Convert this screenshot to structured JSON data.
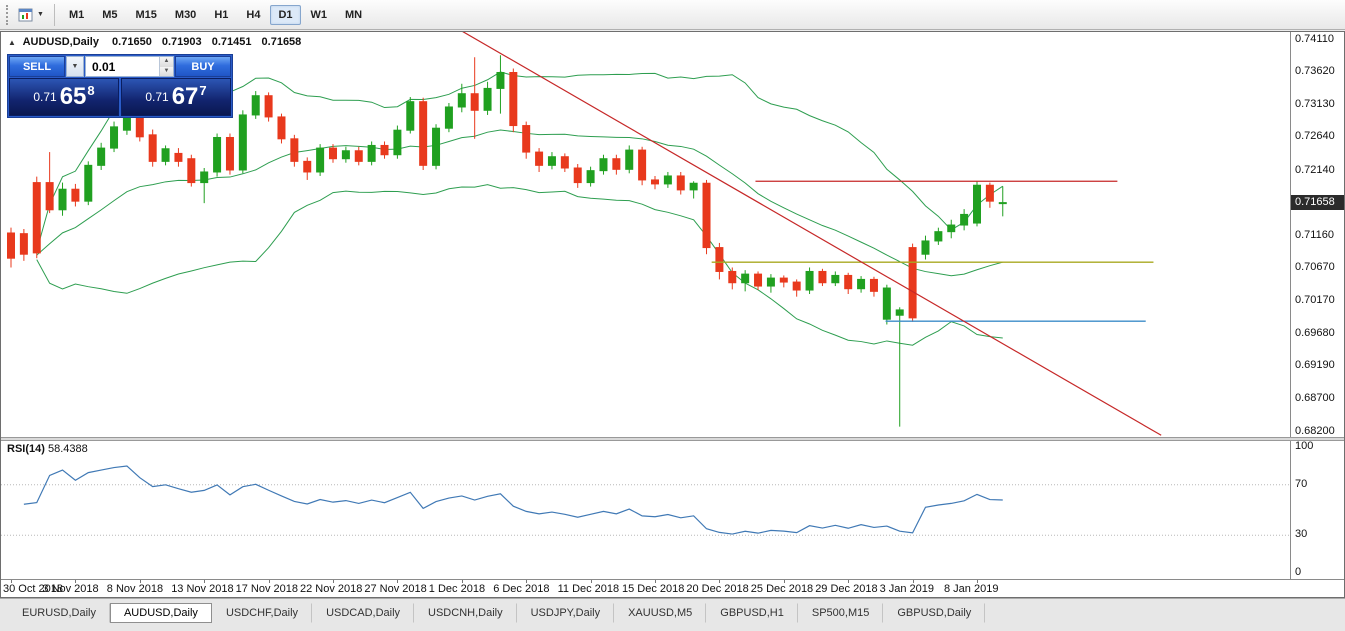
{
  "toolbar": {
    "periods": [
      "M1",
      "M5",
      "M15",
      "M30",
      "H1",
      "H4",
      "D1",
      "W1",
      "MN"
    ],
    "active_period": "D1"
  },
  "chart": {
    "title_symbol": "AUDUSD,Daily",
    "ohlc": {
      "open": "0.71650",
      "high": "0.71903",
      "low": "0.71451",
      "close": "0.71658"
    },
    "current_price": "0.71658",
    "trade_panel": {
      "sell_label": "SELL",
      "buy_label": "BUY",
      "volume": "0.01",
      "sell_price": {
        "prefix": "0.71",
        "big": "65",
        "sup": "8"
      },
      "buy_price": {
        "prefix": "0.71",
        "big": "67",
        "sup": "7"
      }
    }
  },
  "rsi": {
    "label": "RSI(14)",
    "value": "58.4388"
  },
  "tabs": {
    "active_index": 1,
    "items": [
      "EURUSD,Daily",
      "AUDUSD,Daily",
      "USDCHF,Daily",
      "USDCAD,Daily",
      "USDCNH,Daily",
      "USDJPY,Daily",
      "XAUUSD,M5",
      "GBPUSD,H1",
      "SP500,M15",
      "GBPUSD,Daily"
    ]
  },
  "chart_data": {
    "type": "candlestick",
    "title": "AUDUSD,Daily",
    "grid": "off",
    "view_price_range": [
      0.6812,
      0.7423
    ],
    "price_axis_labels": [
      "0.74110",
      "0.73620",
      "0.73130",
      "0.72640",
      "0.72140",
      "0.71650",
      "0.71160",
      "0.70670",
      "0.70170",
      "0.69680",
      "0.69190",
      "0.68700",
      "0.68200"
    ],
    "x_labels": [
      "30 Oct 2018",
      "3 Nov 2018",
      "8 Nov 2018",
      "13 Nov 2018",
      "17 Nov 2018",
      "22 Nov 2018",
      "27 Nov 2018",
      "1 Dec 2018",
      "6 Dec 2018",
      "11 Dec 2018",
      "15 Dec 2018",
      "20 Dec 2018",
      "25 Dec 2018",
      "29 Dec 2018",
      "3 Jan 2019",
      "8 Jan 2019"
    ],
    "candle_colors": {
      "up": "#20A020",
      "down": "#E8391D"
    },
    "candles_ohlc": [
      [
        0.712,
        0.7128,
        0.7068,
        0.7082
      ],
      [
        0.7119,
        0.7126,
        0.7078,
        0.7088
      ],
      [
        0.7196,
        0.7205,
        0.7082,
        0.709
      ],
      [
        0.7196,
        0.7242,
        0.715,
        0.7155
      ],
      [
        0.7155,
        0.7196,
        0.7146,
        0.7186
      ],
      [
        0.7186,
        0.7194,
        0.716,
        0.7168
      ],
      [
        0.7168,
        0.7228,
        0.7162,
        0.7222
      ],
      [
        0.7222,
        0.7256,
        0.7215,
        0.7248
      ],
      [
        0.7248,
        0.7288,
        0.7242,
        0.728
      ],
      [
        0.7275,
        0.7312,
        0.7268,
        0.7304
      ],
      [
        0.7297,
        0.7306,
        0.7258,
        0.7265
      ],
      [
        0.7268,
        0.7276,
        0.722,
        0.7228
      ],
      [
        0.7228,
        0.7252,
        0.7222,
        0.7247
      ],
      [
        0.724,
        0.7248,
        0.722,
        0.7228
      ],
      [
        0.7232,
        0.7238,
        0.719,
        0.7196
      ],
      [
        0.7196,
        0.7218,
        0.7165,
        0.7212
      ],
      [
        0.7212,
        0.727,
        0.7205,
        0.7264
      ],
      [
        0.7264,
        0.727,
        0.7208,
        0.7215
      ],
      [
        0.7215,
        0.7305,
        0.721,
        0.7298
      ],
      [
        0.7298,
        0.7334,
        0.7292,
        0.7327
      ],
      [
        0.7327,
        0.7332,
        0.7288,
        0.7295
      ],
      [
        0.7295,
        0.73,
        0.7255,
        0.7262
      ],
      [
        0.7262,
        0.7268,
        0.722,
        0.7228
      ],
      [
        0.7228,
        0.7234,
        0.72,
        0.7212
      ],
      [
        0.7212,
        0.7254,
        0.7206,
        0.7248
      ],
      [
        0.7248,
        0.7254,
        0.7226,
        0.7232
      ],
      [
        0.7232,
        0.725,
        0.7226,
        0.7244
      ],
      [
        0.7244,
        0.725,
        0.7222,
        0.7228
      ],
      [
        0.7228,
        0.7258,
        0.7222,
        0.7252
      ],
      [
        0.7252,
        0.7258,
        0.7232,
        0.7238
      ],
      [
        0.7238,
        0.7282,
        0.7232,
        0.7275
      ],
      [
        0.7275,
        0.7325,
        0.727,
        0.7318
      ],
      [
        0.7318,
        0.7324,
        0.7215,
        0.7222
      ],
      [
        0.7222,
        0.7284,
        0.7216,
        0.7278
      ],
      [
        0.7278,
        0.7316,
        0.7272,
        0.731
      ],
      [
        0.731,
        0.7345,
        0.7302,
        0.733
      ],
      [
        0.733,
        0.7385,
        0.7262,
        0.7305
      ],
      [
        0.7305,
        0.7348,
        0.7298,
        0.7338
      ],
      [
        0.7338,
        0.7388,
        0.73,
        0.7362
      ],
      [
        0.7362,
        0.7368,
        0.7272,
        0.7282
      ],
      [
        0.7282,
        0.7288,
        0.7232,
        0.7242
      ],
      [
        0.7242,
        0.7248,
        0.7212,
        0.7222
      ],
      [
        0.7222,
        0.7242,
        0.7216,
        0.7235
      ],
      [
        0.7235,
        0.724,
        0.7212,
        0.7218
      ],
      [
        0.7218,
        0.7224,
        0.7188,
        0.7196
      ],
      [
        0.7196,
        0.722,
        0.719,
        0.7214
      ],
      [
        0.7214,
        0.7238,
        0.7208,
        0.7232
      ],
      [
        0.7232,
        0.7238,
        0.7208,
        0.7216
      ],
      [
        0.7216,
        0.7252,
        0.721,
        0.7245
      ],
      [
        0.7245,
        0.725,
        0.7192,
        0.72
      ],
      [
        0.72,
        0.7206,
        0.7186,
        0.7194
      ],
      [
        0.7194,
        0.7212,
        0.7188,
        0.7206
      ],
      [
        0.7206,
        0.7212,
        0.7178,
        0.7185
      ],
      [
        0.7185,
        0.7198,
        0.7172,
        0.7195
      ],
      [
        0.7195,
        0.72,
        0.7088,
        0.7098
      ],
      [
        0.7098,
        0.7105,
        0.705,
        0.7062
      ],
      [
        0.7062,
        0.7068,
        0.7035,
        0.7045
      ],
      [
        0.7045,
        0.7064,
        0.7032,
        0.7058
      ],
      [
        0.7058,
        0.7062,
        0.7034,
        0.704
      ],
      [
        0.704,
        0.7058,
        0.703,
        0.7052
      ],
      [
        0.7052,
        0.7056,
        0.7038,
        0.7046
      ],
      [
        0.7046,
        0.705,
        0.7024,
        0.7034
      ],
      [
        0.7034,
        0.7068,
        0.7028,
        0.7062
      ],
      [
        0.7062,
        0.7066,
        0.704,
        0.7045
      ],
      [
        0.7045,
        0.7062,
        0.704,
        0.7056
      ],
      [
        0.7056,
        0.706,
        0.7028,
        0.7036
      ],
      [
        0.7036,
        0.7055,
        0.703,
        0.705
      ],
      [
        0.705,
        0.7054,
        0.7024,
        0.7032
      ],
      [
        0.699,
        0.7042,
        0.6982,
        0.7037
      ],
      [
        0.6996,
        0.7008,
        0.6828,
        0.7004
      ],
      [
        0.7098,
        0.7104,
        0.6986,
        0.6992
      ],
      [
        0.7088,
        0.7116,
        0.708,
        0.7108
      ],
      [
        0.7108,
        0.7128,
        0.7102,
        0.7122
      ],
      [
        0.7122,
        0.714,
        0.7112,
        0.7132
      ],
      [
        0.7132,
        0.7156,
        0.7124,
        0.7148
      ],
      [
        0.7135,
        0.7198,
        0.713,
        0.7192
      ],
      [
        0.7192,
        0.7196,
        0.7158,
        0.7168
      ],
      [
        0.7165,
        0.71903,
        0.71451,
        0.71658
      ]
    ],
    "overlays": {
      "bollinger": {
        "period": 20,
        "deviation": 2,
        "color": "#2E9E50"
      },
      "trendline": {
        "from_bar": 34.6,
        "from_price": 0.7429,
        "to_bar": 89.3,
        "to_price": 0.6815,
        "color": "#C62828"
      },
      "hlines": [
        {
          "price": 0.7198,
          "from_bar": 57.8,
          "to_bar": 85.9,
          "color": "#C62828"
        },
        {
          "price": 0.7076,
          "from_bar": 54.4,
          "to_bar": 88.7,
          "color": "#A8A820"
        },
        {
          "price": 0.6987,
          "from_bar": 67.9,
          "to_bar": 88.1,
          "color": "#3C8CC8"
        }
      ]
    },
    "indicator_pane": {
      "name": "RSI",
      "period": 14,
      "display_value": "58.4388",
      "levels": [
        70,
        30
      ],
      "range": [
        0,
        100
      ],
      "scale_labels": [
        "100",
        "70",
        "30",
        "0"
      ],
      "color": "#4079B5"
    }
  }
}
